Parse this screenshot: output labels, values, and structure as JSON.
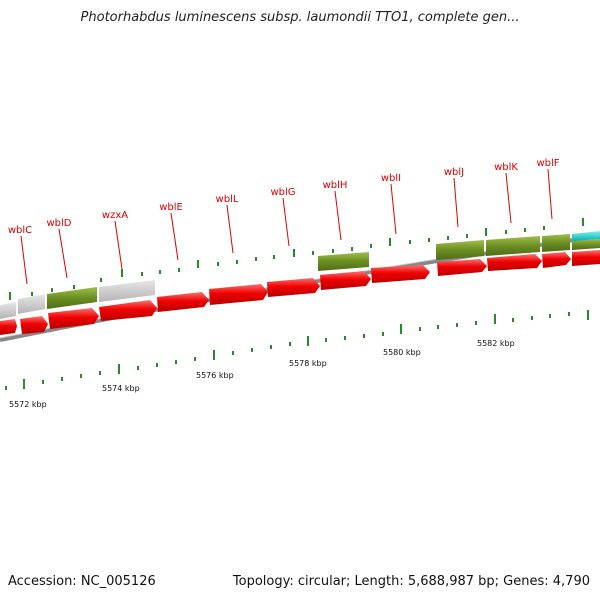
{
  "title": "Photorhabdus luminescens subsp. laumondii TTO1, complete gen...",
  "footer": {
    "accession": "Accession: NC_005126",
    "summary": "Topology: circular; Length: 5,688,987 bp; Genes: 4,790"
  },
  "colors": {
    "gene_label": "#dd0000",
    "cds": "#ee0000",
    "feature_olive": "#6b8e23",
    "feature_grey": "#c8c8c8",
    "feature_cyan": "#00c8c8",
    "tick": "#2a8a2a",
    "backbone": "#888888"
  },
  "map": {
    "scale_labels": [
      "5572 kbp",
      "5574 kbp",
      "5576 kbp",
      "5578 kbp",
      "5580 kbp",
      "5582 kbp"
    ],
    "gene_labels": [
      "wblC",
      "wblD",
      "wzxA",
      "wblE",
      "wblL",
      "wblG",
      "wblH",
      "wblI",
      "wblJ",
      "wblK",
      "wblF"
    ]
  }
}
